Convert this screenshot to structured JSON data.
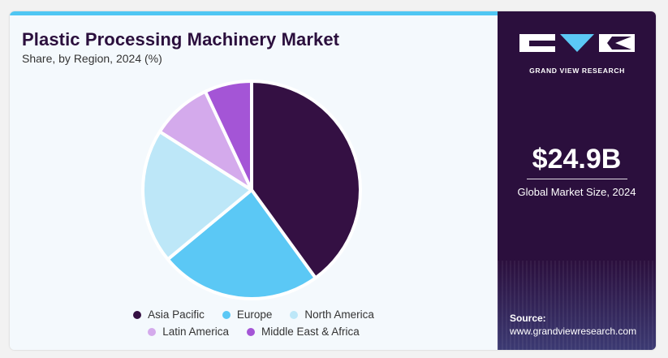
{
  "title": "Plastic Processing Machinery Market",
  "subtitle": "Share, by Region, 2024 (%)",
  "chart_data": {
    "type": "pie",
    "title": "Plastic Processing Machinery Market",
    "subtitle": "Share, by Region, 2024 (%)",
    "categories": [
      "Asia Pacific",
      "Europe",
      "North America",
      "Latin America",
      "Middle East & Africa"
    ],
    "values": [
      40,
      24,
      20,
      9,
      7
    ],
    "colors": [
      "#341043",
      "#5bc8f5",
      "#bde7f8",
      "#d4aaec",
      "#a455d6"
    ],
    "legend_position": "bottom"
  },
  "legend": [
    {
      "label": "Asia Pacific",
      "color": "#341043"
    },
    {
      "label": "Europe",
      "color": "#5bc8f5"
    },
    {
      "label": "North America",
      "color": "#bde7f8"
    },
    {
      "label": "Latin America",
      "color": "#d4aaec"
    },
    {
      "label": "Middle East & Africa",
      "color": "#a455d6"
    }
  ],
  "sidebar": {
    "brand": "GRAND VIEW RESEARCH",
    "market_size": "$24.9B",
    "market_size_label": "Global Market Size, 2024",
    "source_label": "Source:",
    "source_url": "www.grandviewresearch.com"
  }
}
